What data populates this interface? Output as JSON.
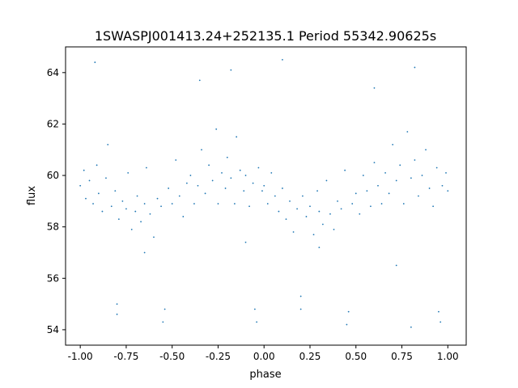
{
  "chart_data": {
    "type": "scatter",
    "title": "1SWASPJ001413.24+252135.1 Period 55342.90625s",
    "xlabel": "phase",
    "ylabel": "flux",
    "xlim": [
      -1.08,
      1.1
    ],
    "ylim": [
      53.4,
      65.0
    ],
    "xticks": [
      "-1.00",
      "-0.75",
      "-0.50",
      "-0.25",
      "0.00",
      "0.25",
      "0.50",
      "0.75",
      "1.00"
    ],
    "xtick_values": [
      -1,
      -0.75,
      -0.5,
      -0.25,
      0,
      0.25,
      0.5,
      0.75,
      1
    ],
    "yticks": [
      "54",
      "56",
      "58",
      "60",
      "62",
      "64"
    ],
    "ytick_values": [
      54,
      56,
      58,
      60,
      62,
      64
    ],
    "grid": false,
    "marker_color": "#1f77b4",
    "points": [
      [
        -1.0,
        59.6
      ],
      [
        -0.98,
        60.2
      ],
      [
        -0.97,
        59.1
      ],
      [
        -0.95,
        59.8
      ],
      [
        -0.93,
        58.9
      ],
      [
        -0.91,
        60.4
      ],
      [
        -0.9,
        59.3
      ],
      [
        -0.88,
        58.6
      ],
      [
        -0.86,
        59.9
      ],
      [
        -0.85,
        61.2
      ],
      [
        -0.83,
        58.8
      ],
      [
        -0.81,
        59.4
      ],
      [
        -0.8,
        55.0
      ],
      [
        -0.8,
        54.6
      ],
      [
        -0.79,
        58.3
      ],
      [
        -0.77,
        59.0
      ],
      [
        -0.75,
        58.7
      ],
      [
        -0.74,
        60.1
      ],
      [
        -0.72,
        57.9
      ],
      [
        -0.7,
        58.6
      ],
      [
        -0.69,
        59.2
      ],
      [
        -0.67,
        58.2
      ],
      [
        -0.65,
        58.9
      ],
      [
        -0.64,
        60.3
      ],
      [
        -0.62,
        58.5
      ],
      [
        -0.6,
        57.6
      ],
      [
        -0.58,
        59.1
      ],
      [
        -0.56,
        58.8
      ],
      [
        -0.55,
        54.3
      ],
      [
        -0.54,
        54.8
      ],
      [
        -0.52,
        59.5
      ],
      [
        -0.5,
        58.9
      ],
      [
        -0.48,
        60.6
      ],
      [
        -0.46,
        59.2
      ],
      [
        -0.44,
        58.4
      ],
      [
        -0.42,
        59.7
      ],
      [
        -0.4,
        60.0
      ],
      [
        -0.38,
        58.9
      ],
      [
        -0.36,
        59.6
      ],
      [
        -0.34,
        61.0
      ],
      [
        -0.32,
        59.3
      ],
      [
        -0.3,
        60.4
      ],
      [
        -0.28,
        59.8
      ],
      [
        -0.26,
        61.8
      ],
      [
        -0.25,
        58.9
      ],
      [
        -0.23,
        60.1
      ],
      [
        -0.21,
        59.5
      ],
      [
        -0.2,
        60.7
      ],
      [
        -0.18,
        59.9
      ],
      [
        -0.16,
        58.9
      ],
      [
        -0.15,
        61.5
      ],
      [
        -0.13,
        60.2
      ],
      [
        -0.11,
        59.4
      ],
      [
        -0.1,
        60.0
      ],
      [
        -0.08,
        58.8
      ],
      [
        -0.06,
        59.7
      ],
      [
        -0.05,
        54.8
      ],
      [
        -0.04,
        54.3
      ],
      [
        -0.03,
        60.3
      ],
      [
        -0.01,
        59.4
      ],
      [
        0.0,
        59.6
      ],
      [
        0.02,
        58.9
      ],
      [
        0.04,
        60.1
      ],
      [
        0.06,
        59.2
      ],
      [
        0.08,
        58.6
      ],
      [
        0.1,
        59.5
      ],
      [
        0.12,
        58.3
      ],
      [
        0.14,
        59.0
      ],
      [
        0.16,
        57.8
      ],
      [
        0.18,
        58.7
      ],
      [
        0.2,
        54.8
      ],
      [
        0.2,
        55.3
      ],
      [
        0.21,
        59.2
      ],
      [
        0.23,
        58.4
      ],
      [
        0.25,
        58.8
      ],
      [
        0.27,
        57.7
      ],
      [
        0.29,
        59.4
      ],
      [
        0.3,
        58.6
      ],
      [
        0.32,
        58.1
      ],
      [
        0.34,
        59.8
      ],
      [
        0.36,
        58.5
      ],
      [
        0.38,
        57.9
      ],
      [
        0.4,
        59.0
      ],
      [
        0.42,
        58.7
      ],
      [
        0.44,
        60.2
      ],
      [
        0.45,
        54.2
      ],
      [
        0.46,
        54.7
      ],
      [
        0.48,
        58.9
      ],
      [
        0.5,
        59.3
      ],
      [
        0.52,
        58.5
      ],
      [
        0.54,
        60.0
      ],
      [
        0.56,
        59.4
      ],
      [
        0.58,
        58.8
      ],
      [
        0.6,
        60.5
      ],
      [
        0.62,
        59.6
      ],
      [
        0.64,
        58.9
      ],
      [
        0.66,
        60.1
      ],
      [
        0.68,
        59.3
      ],
      [
        0.7,
        61.2
      ],
      [
        0.72,
        59.8
      ],
      [
        0.74,
        60.4
      ],
      [
        0.76,
        58.9
      ],
      [
        0.78,
        61.7
      ],
      [
        0.8,
        59.9
      ],
      [
        0.8,
        54.1
      ],
      [
        0.82,
        60.6
      ],
      [
        0.84,
        59.2
      ],
      [
        0.86,
        60.0
      ],
      [
        0.88,
        61.0
      ],
      [
        0.9,
        59.5
      ],
      [
        0.92,
        58.8
      ],
      [
        0.94,
        60.3
      ],
      [
        0.95,
        54.7
      ],
      [
        0.96,
        54.3
      ],
      [
        0.97,
        59.6
      ],
      [
        0.99,
        60.1
      ],
      [
        1.0,
        59.4
      ],
      [
        -0.92,
        64.4
      ],
      [
        -0.35,
        63.7
      ],
      [
        -0.18,
        64.1
      ],
      [
        0.1,
        64.5
      ],
      [
        0.6,
        63.4
      ],
      [
        0.82,
        64.2
      ],
      [
        -0.65,
        57.0
      ],
      [
        0.3,
        57.2
      ],
      [
        -0.1,
        57.4
      ],
      [
        0.72,
        56.5
      ]
    ]
  }
}
